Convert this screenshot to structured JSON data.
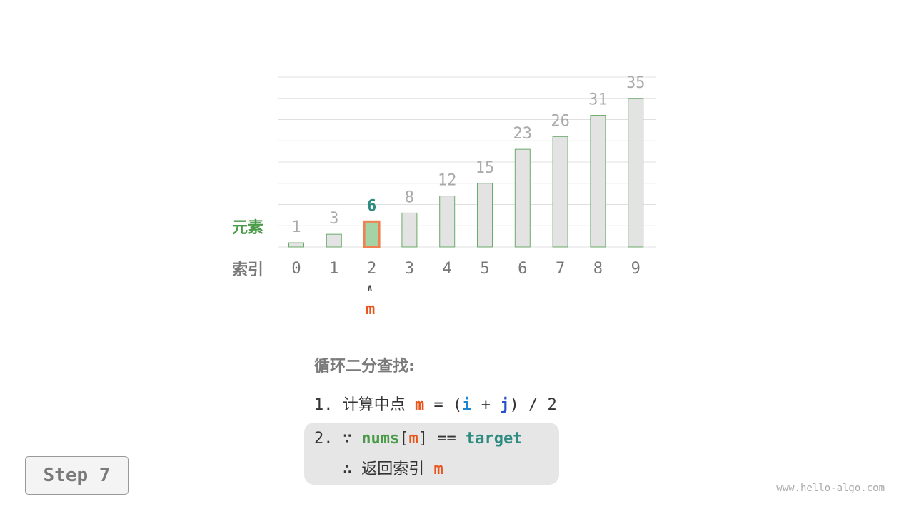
{
  "row_labels": {
    "elements": "元素",
    "indices": "索引"
  },
  "chart_data": {
    "type": "bar",
    "categories": [
      "0",
      "1",
      "2",
      "3",
      "4",
      "5",
      "6",
      "7",
      "8",
      "9"
    ],
    "values": [
      1,
      3,
      6,
      8,
      12,
      15,
      23,
      26,
      31,
      35
    ],
    "highlight_index": 2,
    "ylim": [
      0,
      40
    ],
    "grid": true
  },
  "pointer": {
    "label": "m",
    "arrow": "∧"
  },
  "steps": {
    "title": "循环二分查找:",
    "s1": {
      "num": "1.",
      "text": "计算中点",
      "m": "m",
      "eq": "=",
      "lp": "(",
      "i": "i",
      "plus": "+",
      "j": "j",
      "rp": ")",
      "div": "/",
      "two": "2"
    },
    "s2": {
      "num": "2.",
      "because": "∵",
      "nums": "nums",
      "lb": "[",
      "m": "m",
      "rb": "]",
      "eqeq": "==",
      "target": "target",
      "therefore": "∴",
      "text": "返回索引",
      "m2": "m"
    }
  },
  "step_label": "Step 7",
  "watermark": "www.hello-algo.com",
  "colors": {
    "bar": "#e3e3e3",
    "bar_border": "#6aaa6a",
    "highlight_fill": "#a6d3a6",
    "highlight_border": "#f08050",
    "m": "#e8541a",
    "i": "#1a87d0",
    "j": "#2a4fd0",
    "nums": "#4a9a4a",
    "target": "#2e8b80",
    "label_green": "#4a9a4a",
    "label_gray": "#7a7a7a"
  }
}
